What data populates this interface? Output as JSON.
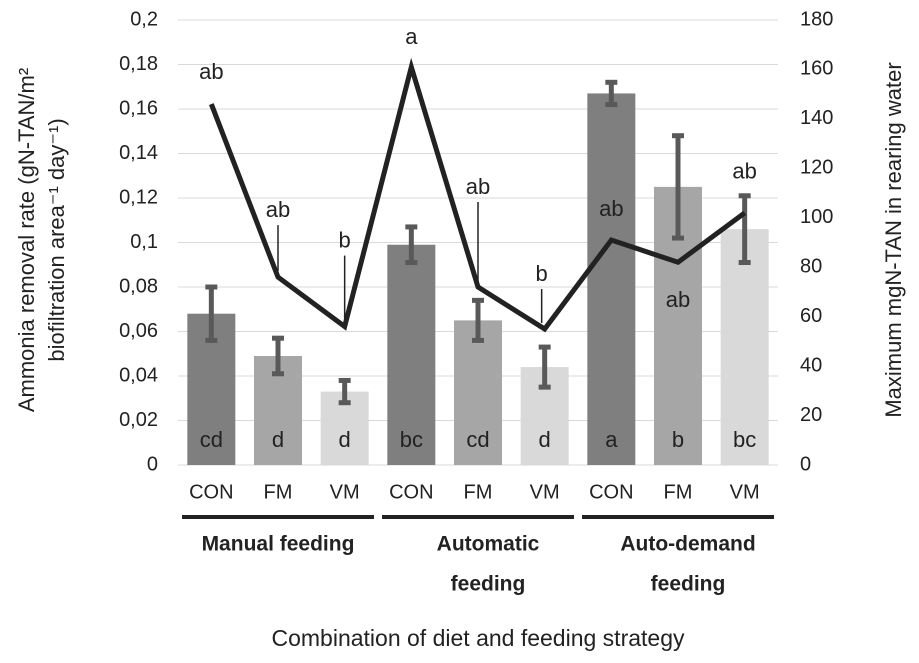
{
  "chart_data": {
    "type": "bar",
    "categories": [
      "CON",
      "FM",
      "VM",
      "CON",
      "FM",
      "VM",
      "CON",
      "FM",
      "VM"
    ],
    "groups": [
      {
        "lines": [
          "Manual feeding"
        ]
      },
      {
        "lines": [
          "Automatic",
          "feeding"
        ]
      },
      {
        "lines": [
          "Auto-demand",
          "feeding"
        ]
      }
    ],
    "colors": [
      "#7f7f7f",
      "#a6a6a6",
      "#d9d9d9",
      "#7f7f7f",
      "#a6a6a6",
      "#d9d9d9",
      "#7f7f7f",
      "#a6a6a6",
      "#d9d9d9"
    ],
    "error_color": "#595959",
    "line_color": "#222222",
    "series": [
      {
        "values": [
          0.068,
          0.049,
          0.033,
          0.099,
          0.065,
          0.044,
          0.167,
          0.125,
          0.106
        ],
        "errors": [
          0.012,
          0.008,
          0.005,
          0.008,
          0.009,
          0.009,
          0.005,
          0.023,
          0.015
        ],
        "letters": [
          "cd",
          "d",
          "d",
          "bc",
          "cd",
          "d",
          "a",
          "b",
          "bc"
        ]
      },
      {
        "axis": "y2",
        "type": "line",
        "values": [
          146,
          76,
          56,
          161,
          72,
          55,
          91,
          82,
          102
        ],
        "letters": [
          "ab",
          "ab",
          "b",
          "a",
          "ab",
          "b",
          "ab",
          "ab",
          "ab"
        ]
      }
    ],
    "ylabel": [
      "Ammonia removal rate (gN-TAN/m²",
      "biofiltration area⁻¹ day⁻¹)"
    ],
    "y2label": "Maximum mgN-TAN in rearing water",
    "xlabel": "Combination of diet and feeding strategy",
    "ylim": [
      0,
      0.2
    ],
    "yticks": [
      0,
      {
        "value": 0.02,
        "label": "0,02"
      },
      {
        "value": 0.04,
        "label": "0,04"
      },
      {
        "value": 0.06,
        "label": "0,06"
      },
      {
        "value": 0.08,
        "label": "0,08"
      },
      {
        "value": 0.1,
        "label": "0,1"
      },
      {
        "value": 0.12,
        "label": "0,12"
      },
      {
        "value": 0.14,
        "label": "0,14"
      },
      {
        "value": 0.16,
        "label": "0,16"
      },
      {
        "value": 0.18,
        "label": "0,18"
      },
      {
        "value": 0.2,
        "label": "0,2"
      }
    ],
    "y2lim": [
      0,
      180
    ],
    "y2ticks": [
      0,
      20,
      40,
      60,
      80,
      100,
      120,
      140,
      160,
      180
    ],
    "grid": true
  }
}
